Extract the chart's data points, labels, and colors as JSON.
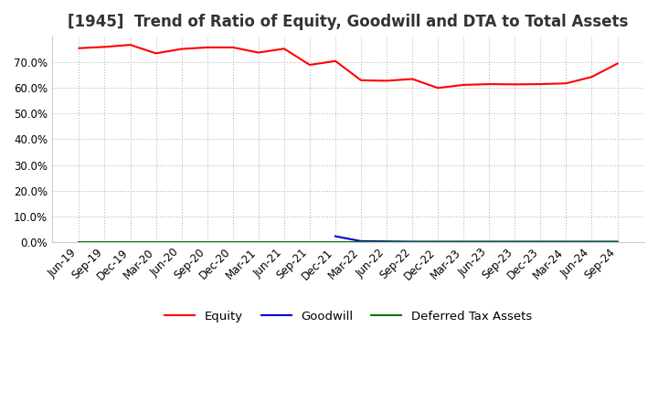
{
  "title": "[1945]  Trend of Ratio of Equity, Goodwill and DTA to Total Assets",
  "x_labels": [
    "Jun-19",
    "Sep-19",
    "Dec-19",
    "Mar-20",
    "Jun-20",
    "Sep-20",
    "Dec-20",
    "Mar-21",
    "Jun-21",
    "Sep-21",
    "Dec-21",
    "Mar-22",
    "Jun-22",
    "Sep-22",
    "Dec-22",
    "Mar-23",
    "Jun-23",
    "Sep-23",
    "Dec-23",
    "Mar-24",
    "Jun-24",
    "Sep-24"
  ],
  "equity": [
    0.755,
    0.76,
    0.768,
    0.735,
    0.752,
    0.758,
    0.758,
    0.738,
    0.753,
    0.69,
    0.705,
    0.63,
    0.628,
    0.635,
    0.6,
    0.612,
    0.615,
    0.614,
    0.615,
    0.618,
    0.643,
    0.695
  ],
  "goodwill": [
    null,
    null,
    null,
    null,
    null,
    null,
    null,
    null,
    null,
    null,
    0.022,
    0.003,
    0.002,
    0.001,
    0.001,
    0.001,
    0.001,
    0.001,
    0.001,
    0.001,
    0.001,
    0.001
  ],
  "dta": [
    0.001,
    0.001,
    0.001,
    0.001,
    0.001,
    0.001,
    0.001,
    0.001,
    0.001,
    0.001,
    0.001,
    0.001,
    0.001,
    0.001,
    0.001,
    0.001,
    0.001,
    0.001,
    0.001,
    0.001,
    0.001,
    0.001
  ],
  "equity_color": "#ff0000",
  "goodwill_color": "#0000cc",
  "dta_color": "#007700",
  "ylim": [
    0.0,
    0.8
  ],
  "yticks": [
    0.0,
    0.1,
    0.2,
    0.3,
    0.4,
    0.5,
    0.6,
    0.7
  ],
  "background_color": "#ffffff",
  "grid_color": "#bbbbbb",
  "title_fontsize": 12,
  "tick_fontsize": 8.5,
  "legend_fontsize": 9.5
}
